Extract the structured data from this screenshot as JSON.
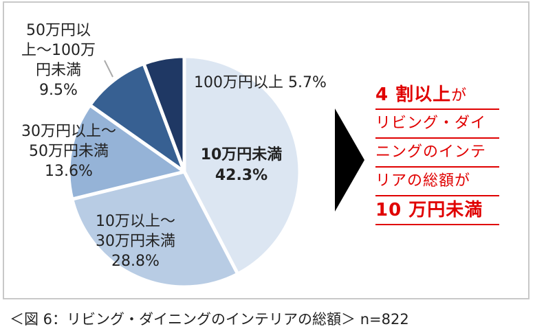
{
  "chart_data": {
    "type": "pie",
    "title": "リビング・ダイニングのインテリアの総額",
    "slices": [
      {
        "label_lines": [
          "10万円未満",
          "42.3%"
        ],
        "value": 42.3,
        "color": "#dce6f2"
      },
      {
        "label_lines": [
          "10万以上～",
          "30万円未満",
          "28.8%"
        ],
        "value": 28.8,
        "color": "#b8cce4"
      },
      {
        "label_lines": [
          "30万円以上～",
          "50万円未満",
          "13.6%"
        ],
        "value": 13.6,
        "color": "#95b3d7"
      },
      {
        "label_lines": [
          "50万円以",
          "上～100万",
          "円未満",
          "9.5%"
        ],
        "value": 9.5,
        "color": "#376092"
      },
      {
        "label_lines": [
          "100万円以上 5.7%"
        ],
        "value": 5.7,
        "color": "#1f3864"
      }
    ]
  },
  "callout": {
    "lines": [
      {
        "em": "4 割以上",
        "text": "が"
      },
      {
        "em": "",
        "text": "リビング・ダイ"
      },
      {
        "em": "",
        "text": "ニングのインテ"
      },
      {
        "em": "",
        "text": "リアの総額が"
      },
      {
        "em": "10 万円未満",
        "text": ""
      }
    ],
    "color": "#e00000"
  },
  "caption": "＜図 6：リビング・ダイニングのインテリアの総額＞ n=822"
}
